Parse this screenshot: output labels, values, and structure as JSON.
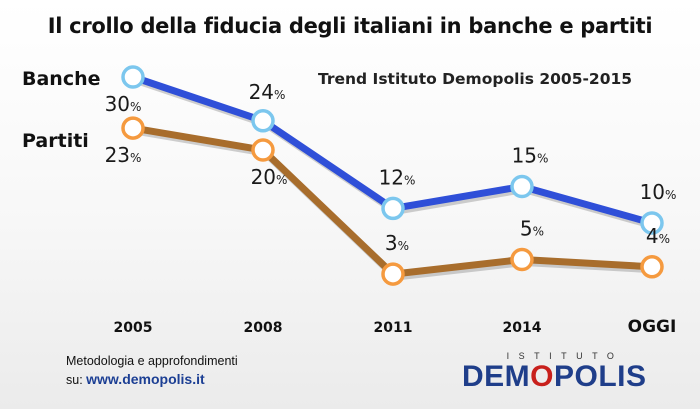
{
  "title": "Il crollo della fiducia degli italiani in banche e partiti",
  "subtitle": "Trend Istituto Demopolis 2005-2015",
  "series_labels": {
    "banche": "Banche",
    "partiti": "Partiti"
  },
  "footer": {
    "line1": "Metodologia e approfondimenti",
    "prefix": "su: ",
    "url": "www.demopolis.it"
  },
  "logo": {
    "small": "ISTITUTO",
    "big_before": "DEM",
    "big_o": "O",
    "big_after": "POLIS"
  },
  "colors": {
    "banche": "#2f4fd8",
    "banche_marker": "#7cc7ee",
    "partiti": "#a86d2c",
    "partiti_marker": "#f59a3f",
    "brand_blue": "#1f3e8a",
    "brand_red": "#c8201c"
  },
  "chart_data": {
    "type": "line",
    "categories": [
      "2005",
      "2008",
      "2011",
      "2014",
      "OGGI"
    ],
    "unit": "%",
    "ylim": [
      0,
      32
    ],
    "grid": false,
    "series": [
      {
        "name": "Banche",
        "values": [
          30,
          24,
          12,
          15,
          10
        ]
      },
      {
        "name": "Partiti",
        "values": [
          23,
          20,
          3,
          5,
          4
        ]
      }
    ]
  }
}
